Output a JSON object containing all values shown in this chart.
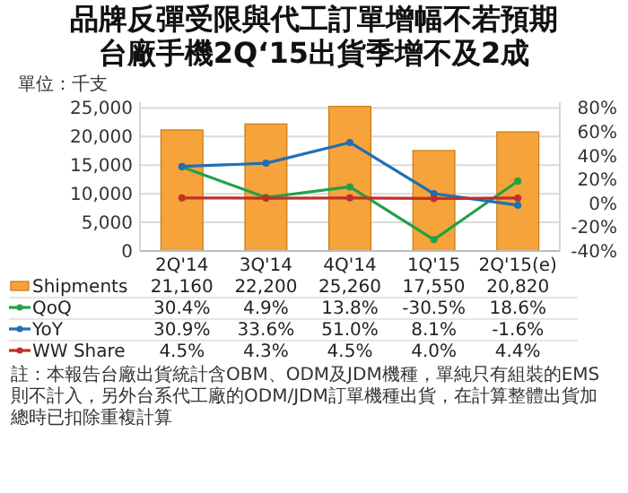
{
  "chart_data": {
    "type": "bar",
    "title": "品牌反彈受限與代工訂單增幅不若預期",
    "subtitle": "台廠手機2Q‘15出貨季增不及2成",
    "categories": [
      "2Q'14",
      "3Q'14",
      "4Q'14",
      "1Q'15",
      "2Q'15(e)"
    ],
    "series": [
      {
        "name": "Shipments",
        "color": "#f5a33a",
        "values": [
          21160,
          22200,
          25260,
          17550,
          20820
        ],
        "value_labels": [
          "21,160",
          "22,200",
          "25,260",
          "17,550",
          "20,820"
        ]
      },
      {
        "name": "QoQ",
        "type": "line",
        "axis": "y2",
        "color": "#22a04a",
        "values": [
          30.4,
          4.9,
          13.8,
          -30.5,
          18.6
        ],
        "value_labels": [
          "30.4%",
          "4.9%",
          "13.8%",
          "-30.5%",
          "18.6%"
        ]
      },
      {
        "name": "YoY",
        "type": "line",
        "axis": "y2",
        "color": "#1f6fb5",
        "values": [
          30.9,
          33.6,
          51.0,
          8.1,
          -1.6
        ],
        "value_labels": [
          "30.9%",
          "33.6%",
          "51.0%",
          "8.1%",
          "-1.6%"
        ]
      },
      {
        "name": "WW Share",
        "type": "line",
        "axis": "y2",
        "color": "#c0302a",
        "values": [
          4.5,
          4.3,
          4.5,
          4.0,
          4.4
        ],
        "value_labels": [
          "4.5%",
          "4.3%",
          "4.5%",
          "4.0%",
          "4.4%"
        ]
      }
    ],
    "ylim": [
      0,
      26000
    ],
    "yticks": [
      {
        "value": 0,
        "label": "0"
      },
      {
        "value": 5000,
        "label": "5,000"
      },
      {
        "value": 10000,
        "label": "10,000"
      },
      {
        "value": 15000,
        "label": "15,000"
      },
      {
        "value": 20000,
        "label": "20,000"
      },
      {
        "value": 25000,
        "label": "25,000"
      }
    ],
    "y2lim": [
      -40,
      84.8
    ],
    "y2ticks": [
      {
        "value": -40,
        "label": "-40%"
      },
      {
        "value": -20,
        "label": "-20%"
      },
      {
        "value": 0,
        "label": "0%"
      },
      {
        "value": 20,
        "label": "20%"
      },
      {
        "value": 40,
        "label": "40%"
      },
      {
        "value": 60,
        "label": "60%"
      },
      {
        "value": 80,
        "label": "80%"
      }
    ],
    "grid": "y",
    "legend": "bottom",
    "marker": "circle",
    "line_style": "solid",
    "annotations": [
      "單位：千支",
      "註：本報告台廠出貨統計含OBM、ODM及JDM機種，單純只有組裝的EMS則不計入，另外台系代工廠的ODM/JDM訂單機種出貨，在計算整體出貨加總時已扣除重複計算"
    ]
  }
}
